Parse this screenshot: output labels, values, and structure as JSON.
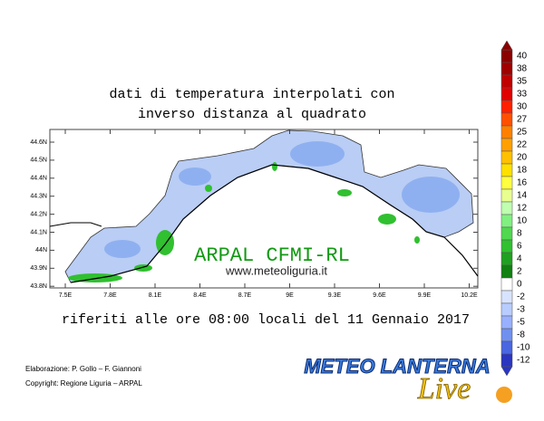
{
  "title": [
    "dati di temperatura interpolati con",
    "inverso distanza al quadrato"
  ],
  "map": {
    "lat_labels": [
      "44.6N",
      "44.5N",
      "44.4N",
      "44.3N",
      "44.2N",
      "44.1N",
      "44N",
      "43.9N",
      "43.8N"
    ],
    "lon_labels": [
      "7.5E",
      "7.8E",
      "8.1E",
      "8.4E",
      "8.7E",
      "9E",
      "9.3E",
      "9.6E",
      "9.9E",
      "10.2E"
    ],
    "watermark": "ARPAL CFMI-RL",
    "website": "www.meteoliguria.it"
  },
  "caption": "riferiti alle ore 08:00 locali del 11 Gennaio 2017",
  "credits": [
    "Elaborazione: P. Gollo – F. Giannoni",
    "Copyright: Regione Liguria – ARPAL"
  ],
  "colorbar": {
    "labels": [
      "40",
      "38",
      "35",
      "33",
      "30",
      "27",
      "25",
      "22",
      "20",
      "18",
      "16",
      "14",
      "12",
      "10",
      "8",
      "6",
      "4",
      "2",
      "0",
      "-2",
      "-3",
      "-5",
      "-8",
      "-10",
      "-12"
    ],
    "colors": [
      "#8b0000",
      "#a00000",
      "#c00000",
      "#e00000",
      "#ff2000",
      "#ff5000",
      "#ff8000",
      "#ffa000",
      "#ffc000",
      "#ffe000",
      "#ffff40",
      "#e8ff90",
      "#c0ffb0",
      "#80f080",
      "#50d850",
      "#30c030",
      "#20a020",
      "#108010",
      "#ffffff",
      "#d8e4ff",
      "#b8ccff",
      "#98b0ff",
      "#7090f0",
      "#4a66e0",
      "#2a36c0"
    ]
  },
  "logo": {
    "name": "METEO LANTERNA",
    "tagline": "Live"
  }
}
